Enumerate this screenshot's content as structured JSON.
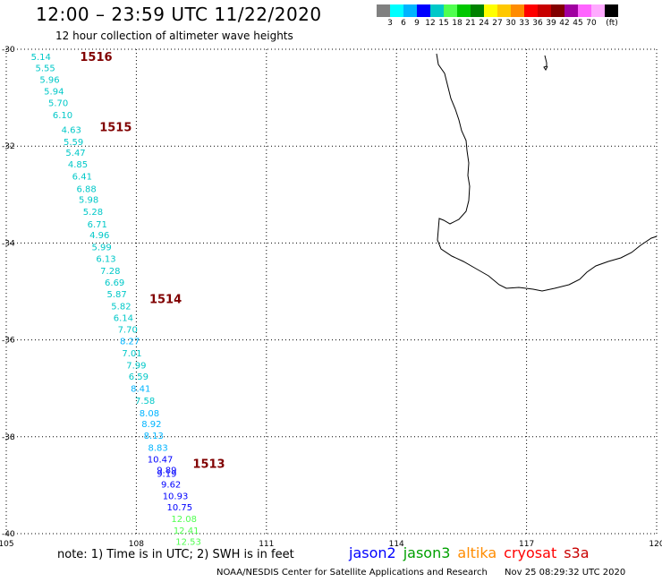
{
  "header": {
    "title": "12:00 – 23:59 UTC 11/22/2020",
    "subtitle": "12 hour collection of altimeter wave heights"
  },
  "scale": {
    "colors": [
      "#808080",
      "#00ffff",
      "#00b4ff",
      "#0000ff",
      "#00c8c8",
      "#50ff50",
      "#00c800",
      "#008200",
      "#ffff00",
      "#ffc800",
      "#ff8c00",
      "#ff0000",
      "#c80000",
      "#820000",
      "#a000a0",
      "#ff64ff",
      "#ffaaff",
      "#000000"
    ],
    "labels": [
      "3",
      "6",
      "9",
      "12",
      "15",
      "18",
      "21",
      "24",
      "27",
      "30",
      "33",
      "36",
      "39",
      "42",
      "45",
      "70",
      "(ft)"
    ]
  },
  "axes": {
    "lat_labels": [
      "-30",
      "-32",
      "-34",
      "-36",
      "-38",
      "-40"
    ],
    "lat_values": [
      -30,
      -32,
      -34,
      -36,
      -38,
      -40
    ],
    "lon_labels": [
      "105",
      "108",
      "111",
      "114",
      "117",
      "120"
    ],
    "lon_values": [
      105,
      108,
      111,
      114,
      117,
      120
    ]
  },
  "pass_labels": [
    {
      "text": "1516",
      "lon": 106.7,
      "lat": -30.15,
      "color": "#800000"
    },
    {
      "text": "1515",
      "lon": 107.15,
      "lat": -31.6,
      "color": "#800000"
    },
    {
      "text": "1514",
      "lon": 108.3,
      "lat": -35.15,
      "color": "#800000"
    },
    {
      "text": "1513",
      "lon": 109.3,
      "lat": -38.55,
      "color": "#800000"
    }
  ],
  "wave_heights": [
    {
      "value": "5.14",
      "lon": 105.8,
      "lat": -30.15,
      "color": "#00c8c8"
    },
    {
      "value": "5.55",
      "lon": 105.9,
      "lat": -30.38,
      "color": "#00c8c8"
    },
    {
      "value": "5.96",
      "lon": 106.0,
      "lat": -30.62,
      "color": "#00c8c8"
    },
    {
      "value": "5.94",
      "lon": 106.1,
      "lat": -30.86,
      "color": "#00c8c8"
    },
    {
      "value": "5.70",
      "lon": 106.2,
      "lat": -31.1,
      "color": "#00c8c8"
    },
    {
      "value": "6.10",
      "lon": 106.3,
      "lat": -31.35,
      "color": "#00c8c8"
    },
    {
      "value": "4.63",
      "lon": 106.5,
      "lat": -31.65,
      "color": "#00c8c8"
    },
    {
      "value": "5.59",
      "lon": 106.55,
      "lat": -31.9,
      "color": "#00c8c8"
    },
    {
      "value": "5.47",
      "lon": 106.6,
      "lat": -32.13,
      "color": "#00c8c8"
    },
    {
      "value": "4.85",
      "lon": 106.65,
      "lat": -32.37,
      "color": "#00c8c8"
    },
    {
      "value": "6.41",
      "lon": 106.75,
      "lat": -32.62,
      "color": "#00c8c8"
    },
    {
      "value": "6.88",
      "lon": 106.85,
      "lat": -32.87,
      "color": "#00c8c8"
    },
    {
      "value": "5.98",
      "lon": 106.9,
      "lat": -33.1,
      "color": "#00c8c8"
    },
    {
      "value": "5.28",
      "lon": 107.0,
      "lat": -33.35,
      "color": "#00c8c8"
    },
    {
      "value": "6.71",
      "lon": 107.1,
      "lat": -33.6,
      "color": "#00c8c8"
    },
    {
      "value": "4.96",
      "lon": 107.15,
      "lat": -33.83,
      "color": "#00c8c8"
    },
    {
      "value": "5.99",
      "lon": 107.2,
      "lat": -34.08,
      "color": "#00c8c8"
    },
    {
      "value": "6.13",
      "lon": 107.3,
      "lat": -34.32,
      "color": "#00c8c8"
    },
    {
      "value": "7.28",
      "lon": 107.4,
      "lat": -34.57,
      "color": "#00c8c8"
    },
    {
      "value": "6.69",
      "lon": 107.5,
      "lat": -34.81,
      "color": "#00c8c8"
    },
    {
      "value": "5.87",
      "lon": 107.55,
      "lat": -35.05,
      "color": "#00c8c8"
    },
    {
      "value": "5.82",
      "lon": 107.65,
      "lat": -35.3,
      "color": "#00c8c8"
    },
    {
      "value": "6.14",
      "lon": 107.7,
      "lat": -35.54,
      "color": "#00c8c8"
    },
    {
      "value": "7.70",
      "lon": 107.8,
      "lat": -35.78,
      "color": "#00c8c8"
    },
    {
      "value": "8.27",
      "lon": 107.85,
      "lat": -36.02,
      "color": "#00b4ff"
    },
    {
      "value": "7.01",
      "lon": 107.9,
      "lat": -36.27,
      "color": "#00c8c8"
    },
    {
      "value": "7.99",
      "lon": 108.0,
      "lat": -36.52,
      "color": "#00c8c8"
    },
    {
      "value": "6.59",
      "lon": 108.05,
      "lat": -36.75,
      "color": "#00c8c8"
    },
    {
      "value": "8.41",
      "lon": 108.1,
      "lat": -37.0,
      "color": "#00b4ff"
    },
    {
      "value": "7.58",
      "lon": 108.2,
      "lat": -37.25,
      "color": "#00c8c8"
    },
    {
      "value": "8.08",
      "lon": 108.3,
      "lat": -37.5,
      "color": "#00b4ff"
    },
    {
      "value": "8.92",
      "lon": 108.35,
      "lat": -37.73,
      "color": "#00b4ff"
    },
    {
      "value": "8.13",
      "lon": 108.4,
      "lat": -37.97,
      "color": "#00b4ff"
    },
    {
      "value": "8.83",
      "lon": 108.5,
      "lat": -38.22,
      "color": "#00b4ff"
    },
    {
      "value": "10.47",
      "lon": 108.55,
      "lat": -38.46,
      "color": "#0000ff"
    },
    {
      "value": "9.89",
      "lon": 108.7,
      "lat": -38.68,
      "color": "#0000ff"
    },
    {
      "value": "9.19",
      "lon": 108.7,
      "lat": -38.75,
      "color": "#0000ff"
    },
    {
      "value": "9.62",
      "lon": 108.8,
      "lat": -38.97,
      "color": "#0000ff"
    },
    {
      "value": "10.93",
      "lon": 108.9,
      "lat": -39.21,
      "color": "#0000ff"
    },
    {
      "value": "10.75",
      "lon": 109.0,
      "lat": -39.45,
      "color": "#0000ff"
    },
    {
      "value": "12.08",
      "lon": 109.1,
      "lat": -39.69,
      "color": "#50ff50"
    },
    {
      "value": "12.41",
      "lon": 109.15,
      "lat": -39.93,
      "color": "#50ff50"
    },
    {
      "value": "12.53",
      "lon": 109.2,
      "lat": -40.16,
      "color": "#50ff50"
    }
  ],
  "note": "note: 1) Time is in UTC; 2) SWH is in feet",
  "satellites": [
    {
      "name": "jason2",
      "color": "#0000ff"
    },
    {
      "name": "jason3",
      "color": "#00a000"
    },
    {
      "name": "altika",
      "color": "#ff8c00"
    },
    {
      "name": "cryosat",
      "color": "#ff0000"
    },
    {
      "name": "s3a",
      "color": "#c80000"
    }
  ],
  "footer": {
    "credit": "NOAA/NESDIS Center for Satellite Applications and Research",
    "timestamp": "Nov 25 08:29:32 UTC 2020"
  }
}
